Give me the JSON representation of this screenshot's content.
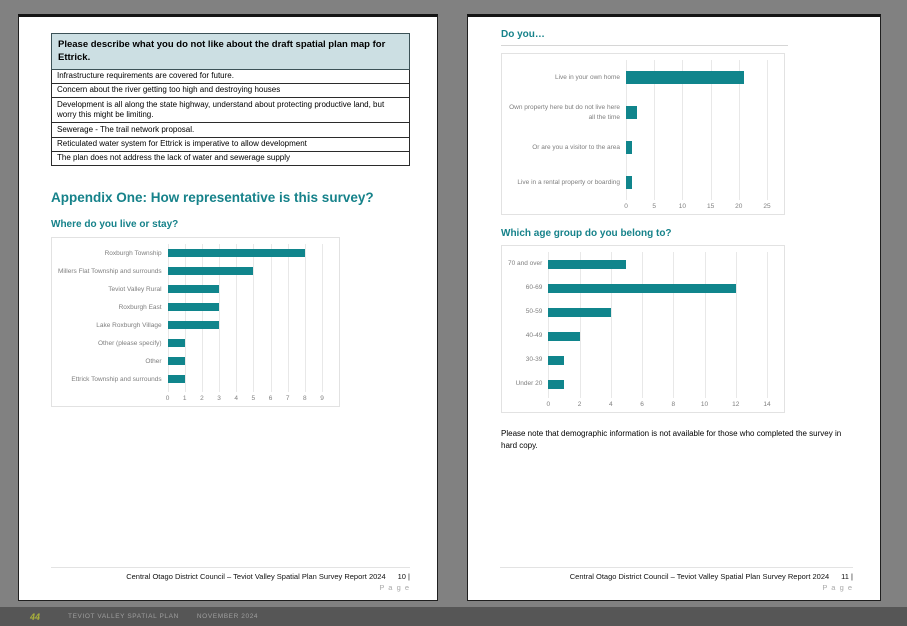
{
  "theme": {
    "accent_teal": "#16828A",
    "bar_teal": "#10858C",
    "table_header_bg": "#CCDFE3",
    "canvas_gray": "#818181",
    "strip_gray": "#565656",
    "strip_accent_olive": "#A9B13A"
  },
  "left_page": {
    "table": {
      "header": "Please describe what you do not like about the draft spatial plan map for Ettrick.",
      "rows": [
        "Infrastructure requirements are covered for future.",
        "Concern about the river getting too high and destroying houses",
        "Development is all along the state highway, understand about protecting productive land, but worry this might be limiting.",
        "Sewerage - The trail network proposal.",
        "Reticulated water system for Ettrick is imperative to allow development",
        "The plan does not address the lack of water and sewerage supply"
      ]
    },
    "appendix_heading": "Appendix One: How representative is this survey?",
    "footer": {
      "text": "Central Otago District Council – Teviot Valley Spatial Plan Survey Report 2024",
      "page_number": "10 |",
      "page_word": "P a g e"
    }
  },
  "right_page": {
    "note": "Please note that demographic information is not available for those who completed the survey in hard copy.",
    "footer": {
      "text": "Central Otago District Council – Teviot Valley Spatial Plan Survey Report 2024",
      "page_number": "11 |",
      "page_word": "P a g e"
    }
  },
  "chart_data": [
    {
      "type": "bar",
      "orientation": "horizontal",
      "title": "Where do you live or stay?",
      "categories": [
        "Roxburgh Township",
        "Millers Flat Township and surrounds",
        "Teviot Valley Rural",
        "Roxburgh East",
        "Lake Roxburgh Village",
        "Other (please specify)",
        "Other",
        "Ettrick Township and surrounds"
      ],
      "values": [
        8,
        5,
        3,
        3,
        3,
        1,
        1,
        1
      ],
      "xlim": [
        0,
        9
      ],
      "xticks": [
        0,
        1,
        2,
        3,
        4,
        5,
        6,
        7,
        8,
        9
      ],
      "grid": true,
      "legend": false,
      "bar_color": "#10858C"
    },
    {
      "type": "bar",
      "orientation": "horizontal",
      "title": "Do you…",
      "categories": [
        "Live in your own home",
        "Own property here but do not live here all the time",
        "Or are you a visitor to the area",
        "Live in a rental property or boarding"
      ],
      "values": [
        21,
        2,
        1,
        1
      ],
      "xlim": [
        0,
        25
      ],
      "xticks": [
        0,
        5,
        10,
        15,
        20,
        25
      ],
      "grid": true,
      "legend": false,
      "bar_color": "#10858C"
    },
    {
      "type": "bar",
      "orientation": "horizontal",
      "title": "Which age group do you belong to?",
      "categories": [
        "70 and over",
        "60-69",
        "50-59",
        "40-49",
        "30-39",
        "Under 20"
      ],
      "values": [
        5,
        12,
        4,
        2,
        1,
        1
      ],
      "xlim": [
        0,
        14
      ],
      "xticks": [
        0,
        2,
        4,
        6,
        8,
        10,
        12,
        14
      ],
      "grid": true,
      "legend": false,
      "bar_color": "#10858C"
    }
  ],
  "bottom_strip": {
    "page_number": "44",
    "doc_title": "TEVIOT VALLEY SPATIAL PLAN",
    "date": "NOVEMBER 2024"
  }
}
